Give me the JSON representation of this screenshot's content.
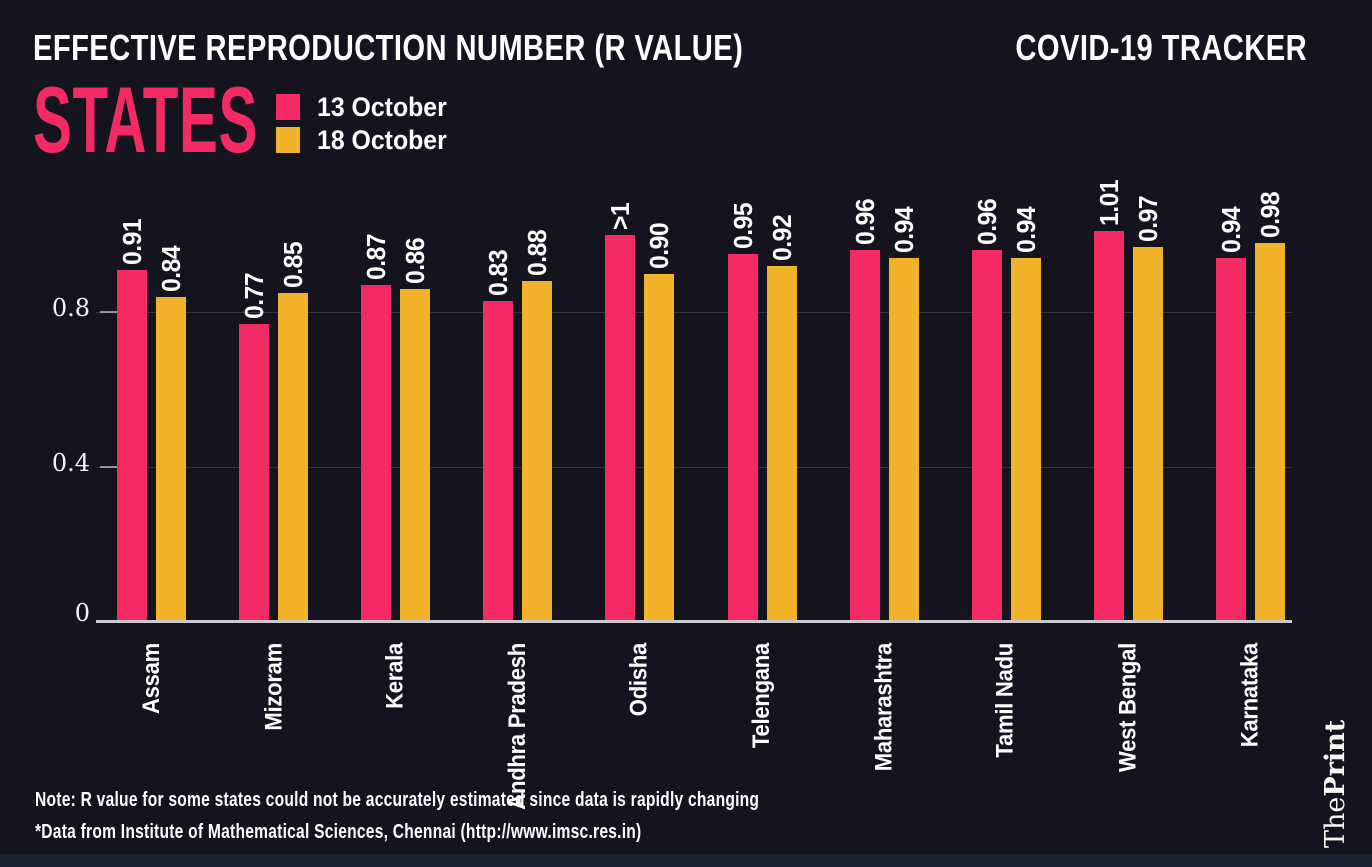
{
  "page": {
    "background": "#14141f",
    "footer_bar_color": "#1b2230"
  },
  "header": {
    "title": "EFFECTIVE REPRODUCTION NUMBER (R VALUE)",
    "tracker": "COVID-19 TRACKER",
    "section": "STATES",
    "section_color": "#f32a63"
  },
  "legend": {
    "items": [
      {
        "label": "13 October",
        "color": "#f32a63"
      },
      {
        "label": "18 October",
        "color": "#f2b229"
      }
    ]
  },
  "chart_data": {
    "type": "bar",
    "grouping": "grouped",
    "title": "EFFECTIVE REPRODUCTION NUMBER (R VALUE) — STATES",
    "categories": [
      "Assam",
      "Mizoram",
      "Kerala",
      "Andhra Pradesh",
      "Odisha",
      "Telengana",
      "Maharashtra",
      "Tamil Nadu",
      "West Bengal",
      "Karnataka"
    ],
    "series": [
      {
        "name": "13 October",
        "color": "#f32a63",
        "values": [
          0.91,
          0.77,
          0.87,
          0.83,
          1.0,
          0.95,
          0.96,
          0.96,
          1.01,
          0.94
        ],
        "labels": [
          "0.91",
          "0.77",
          "0.87",
          "0.83",
          ">1",
          "0.95",
          "0.96",
          "0.96",
          "1.01",
          "0.94"
        ]
      },
      {
        "name": "18 October",
        "color": "#f2b229",
        "values": [
          0.84,
          0.85,
          0.86,
          0.88,
          0.9,
          0.92,
          0.94,
          0.94,
          0.97,
          0.98
        ],
        "labels": [
          "0.84",
          "0.85",
          "0.86",
          "0.88",
          "0.90",
          "0.92",
          "0.94",
          "0.94",
          "0.97",
          "0.98"
        ]
      }
    ],
    "xlabel": "",
    "ylabel": "",
    "ylim": [
      0,
      1.1
    ],
    "yticks": [
      {
        "label": "0",
        "value": 0
      },
      {
        "label": "0.4",
        "value": 0.4
      },
      {
        "label": "0.8",
        "value": 0.8
      }
    ],
    "grid_values": [
      0.4,
      0.8
    ],
    "grid": true,
    "legend_position": "top-left",
    "value_labels_rotated": true,
    "category_labels_rotated": true
  },
  "notes": {
    "line1": "Note: R value for some states could not be accurately estimated since data is rapidly changing",
    "line2": "*Data from Institute of Mathematical Sciences, Chennai (http://www.imsc.res.in)"
  },
  "branding": {
    "the": "The",
    "print": "Print"
  }
}
